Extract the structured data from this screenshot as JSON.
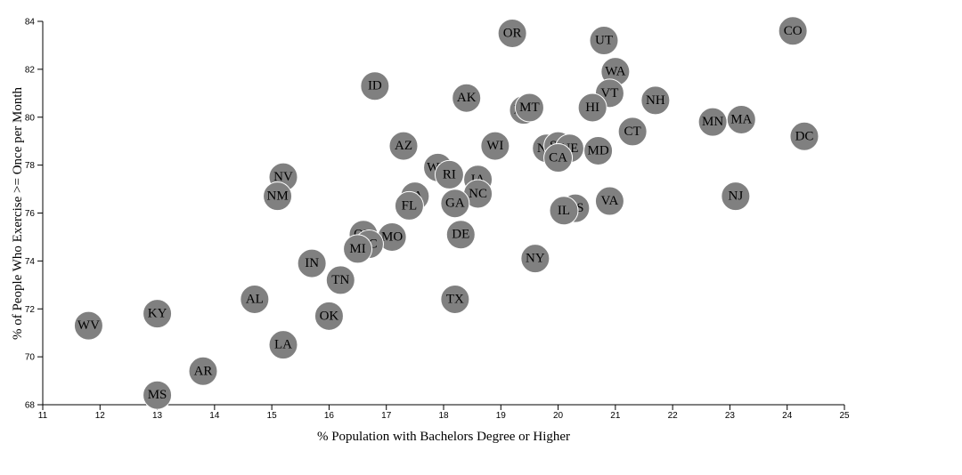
{
  "chart_data": {
    "type": "scatter",
    "xlabel": "% Population with Bachelors Degree or Higher",
    "ylabel": "% of People Who Exercise >= Once per Month",
    "xlim": [
      11,
      25
    ],
    "ylim": [
      68,
      84
    ],
    "x_ticks": [
      11,
      12,
      13,
      14,
      15,
      16,
      17,
      18,
      19,
      20,
      21,
      22,
      23,
      24,
      25
    ],
    "y_ticks": [
      68,
      70,
      72,
      74,
      76,
      78,
      80,
      82,
      84
    ],
    "grid": false,
    "marker_color": "#808080",
    "points": [
      {
        "label": "CO",
        "x": 24.1,
        "y": 83.6
      },
      {
        "label": "OR",
        "x": 19.2,
        "y": 83.5
      },
      {
        "label": "UT",
        "x": 20.8,
        "y": 83.2
      },
      {
        "label": "WA",
        "x": 21.0,
        "y": 81.9
      },
      {
        "label": "ID",
        "x": 16.8,
        "y": 81.3
      },
      {
        "label": "VT",
        "x": 20.9,
        "y": 81.0
      },
      {
        "label": "AK",
        "x": 18.4,
        "y": 80.8
      },
      {
        "label": "NH",
        "x": 21.7,
        "y": 80.7
      },
      {
        "label": "ME",
        "x": 19.4,
        "y": 80.3
      },
      {
        "label": "MT",
        "x": 19.5,
        "y": 80.4
      },
      {
        "label": "HI",
        "x": 20.6,
        "y": 80.4
      },
      {
        "label": "MN",
        "x": 22.7,
        "y": 79.8
      },
      {
        "label": "MA",
        "x": 23.2,
        "y": 79.9
      },
      {
        "label": "CT",
        "x": 21.3,
        "y": 79.4
      },
      {
        "label": "DC",
        "x": 24.3,
        "y": 79.2
      },
      {
        "label": "AZ",
        "x": 17.3,
        "y": 78.8
      },
      {
        "label": "WI",
        "x": 18.9,
        "y": 78.8
      },
      {
        "label": "ND",
        "x": 19.8,
        "y": 78.7
      },
      {
        "label": "SD",
        "x": 20.0,
        "y": 78.8
      },
      {
        "label": "NE",
        "x": 20.2,
        "y": 78.7
      },
      {
        "label": "MD",
        "x": 20.7,
        "y": 78.6
      },
      {
        "label": "CA",
        "x": 20.0,
        "y": 78.3
      },
      {
        "label": "WY",
        "x": 17.9,
        "y": 77.9
      },
      {
        "label": "RI",
        "x": 18.1,
        "y": 77.6
      },
      {
        "label": "IA",
        "x": 18.6,
        "y": 77.4
      },
      {
        "label": "NV",
        "x": 15.2,
        "y": 77.5
      },
      {
        "label": "NC",
        "x": 18.6,
        "y": 76.8
      },
      {
        "label": "NM",
        "x": 15.1,
        "y": 76.7
      },
      {
        "label": "PA",
        "x": 17.5,
        "y": 76.7
      },
      {
        "label": "NJ",
        "x": 23.1,
        "y": 76.7
      },
      {
        "label": "VA",
        "x": 20.9,
        "y": 76.5
      },
      {
        "label": "GA",
        "x": 18.2,
        "y": 76.4
      },
      {
        "label": "FL",
        "x": 17.4,
        "y": 76.3
      },
      {
        "label": "KS",
        "x": 20.3,
        "y": 76.2
      },
      {
        "label": "IL",
        "x": 20.1,
        "y": 76.1
      },
      {
        "label": "DE",
        "x": 18.3,
        "y": 75.1
      },
      {
        "label": "OH",
        "x": 16.6,
        "y": 75.1
      },
      {
        "label": "MO",
        "x": 17.1,
        "y": 75.0
      },
      {
        "label": "SC",
        "x": 16.7,
        "y": 74.7
      },
      {
        "label": "MI",
        "x": 16.5,
        "y": 74.5
      },
      {
        "label": "NY",
        "x": 19.6,
        "y": 74.1
      },
      {
        "label": "IN",
        "x": 15.7,
        "y": 73.9
      },
      {
        "label": "TN",
        "x": 16.2,
        "y": 73.2
      },
      {
        "label": "AL",
        "x": 14.7,
        "y": 72.4
      },
      {
        "label": "TX",
        "x": 18.2,
        "y": 72.4
      },
      {
        "label": "KY",
        "x": 13.0,
        "y": 71.8
      },
      {
        "label": "OK",
        "x": 16.0,
        "y": 71.7
      },
      {
        "label": "WV",
        "x": 11.8,
        "y": 71.3
      },
      {
        "label": "LA",
        "x": 15.2,
        "y": 70.5
      },
      {
        "label": "AR",
        "x": 13.8,
        "y": 69.4
      },
      {
        "label": "MS",
        "x": 13.0,
        "y": 68.4
      }
    ]
  }
}
